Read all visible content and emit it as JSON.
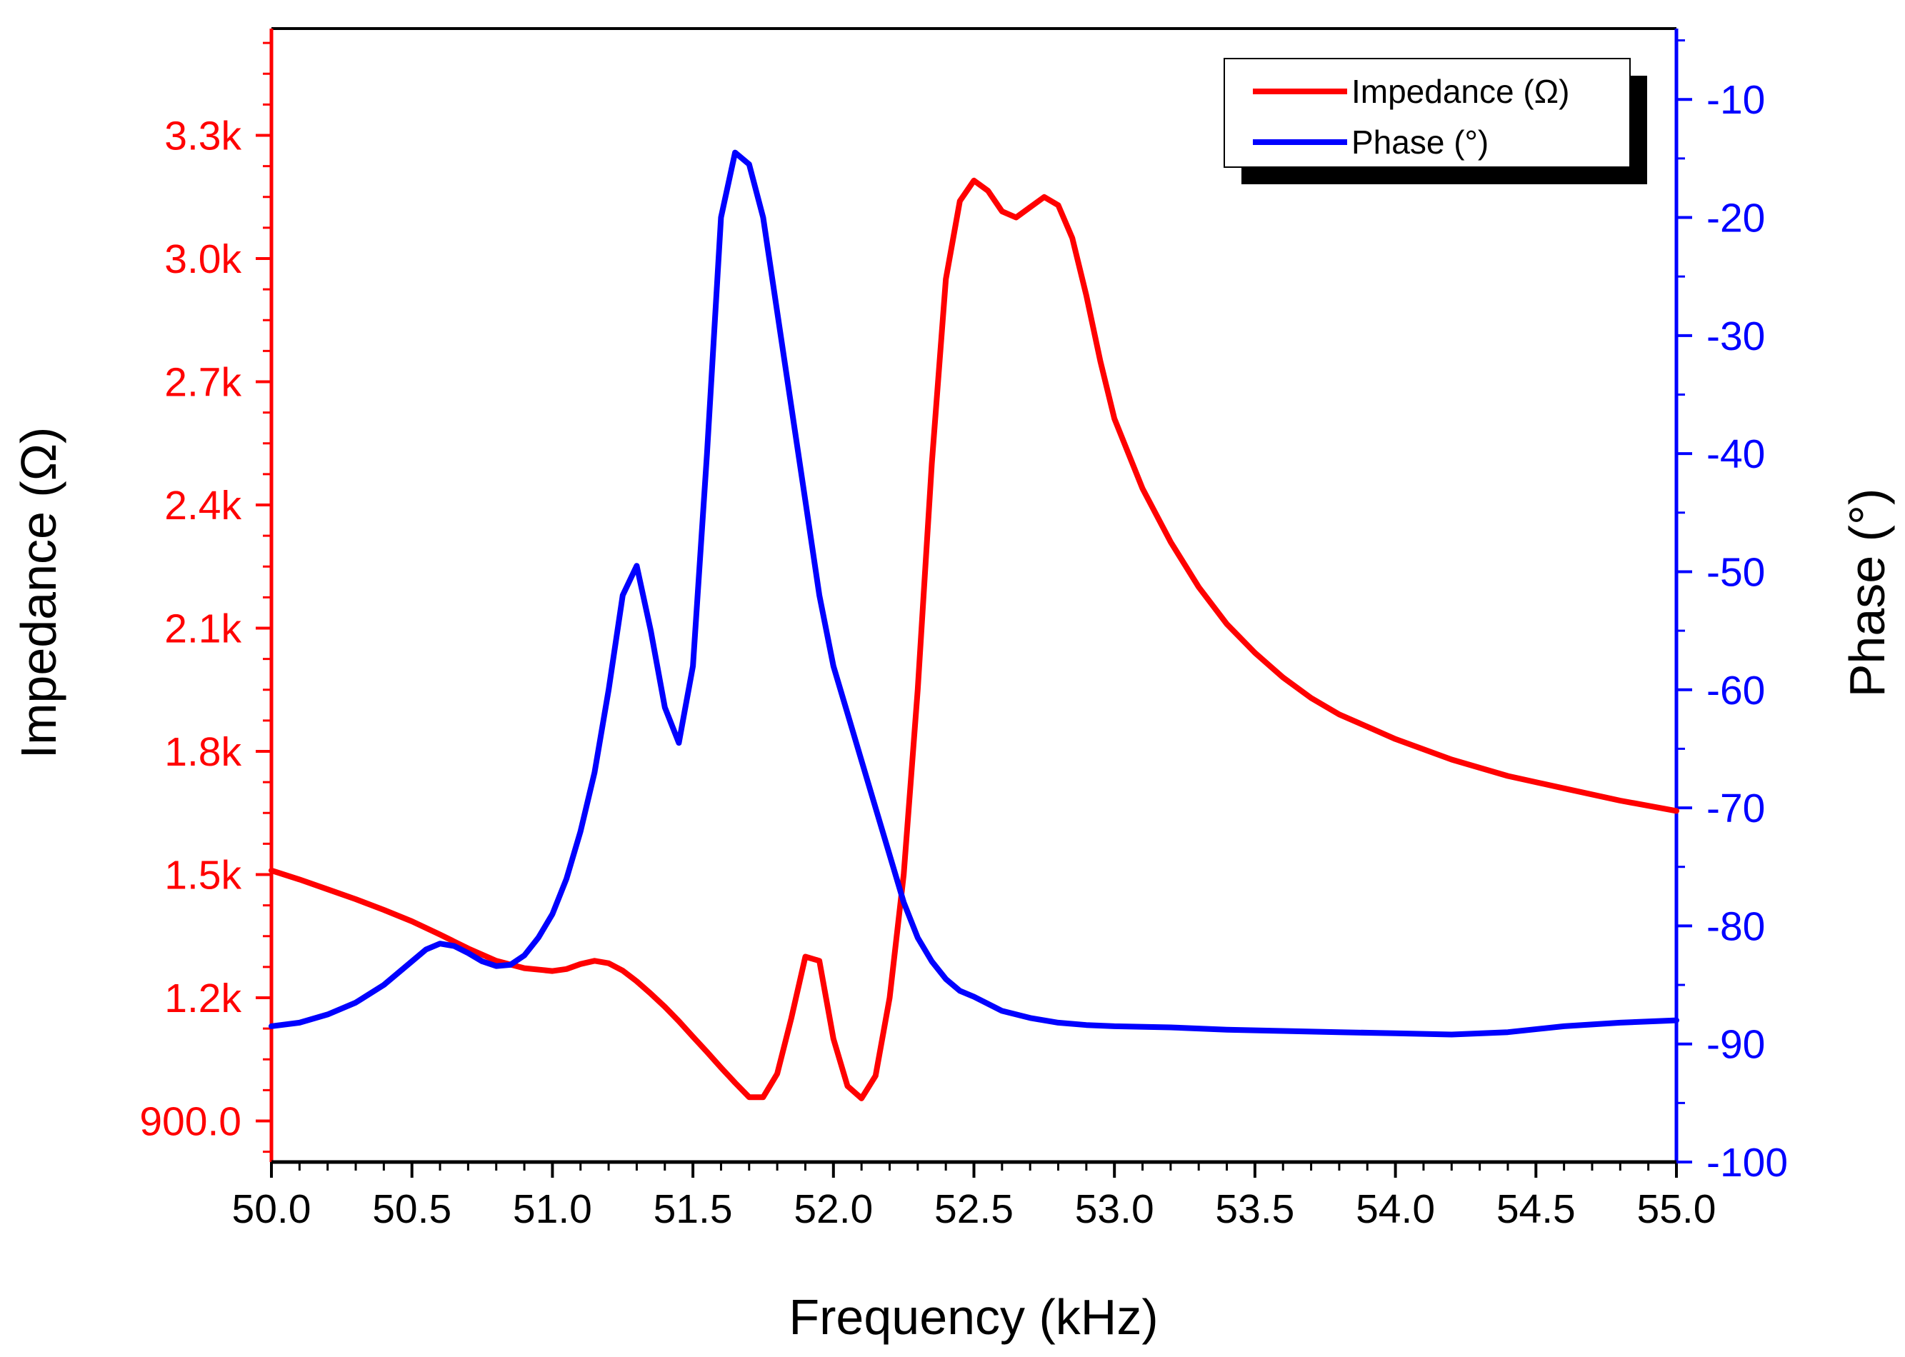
{
  "chart_data": {
    "type": "line",
    "title": "",
    "xlabel": "Frequency (kHz)",
    "ylabel_left": "Impedance (Ω)",
    "ylabel_right": "Phase (°)",
    "xlim": [
      50.0,
      55.0
    ],
    "ylim_left": [
      800,
      3560
    ],
    "ylim_right": [
      -100,
      -4
    ],
    "x_ticks": [
      "50.0",
      "50.5",
      "51.0",
      "51.5",
      "52.0",
      "52.5",
      "53.0",
      "53.5",
      "54.0",
      "54.5",
      "55.0"
    ],
    "y_left_ticks": [
      {
        "value": 900,
        "label": "900.0"
      },
      {
        "value": 1200,
        "label": "1.2k"
      },
      {
        "value": 1500,
        "label": "1.5k"
      },
      {
        "value": 1800,
        "label": "1.8k"
      },
      {
        "value": 2100,
        "label": "2.1k"
      },
      {
        "value": 2400,
        "label": "2.4k"
      },
      {
        "value": 2700,
        "label": "2.7k"
      },
      {
        "value": 3000,
        "label": "3.0k"
      },
      {
        "value": 3300,
        "label": "3.3k"
      }
    ],
    "y_right_ticks": [
      {
        "value": -100,
        "label": "-100"
      },
      {
        "value": -90,
        "label": "-90"
      },
      {
        "value": -80,
        "label": "-80"
      },
      {
        "value": -70,
        "label": "-70"
      },
      {
        "value": -60,
        "label": "-60"
      },
      {
        "value": -50,
        "label": "-50"
      },
      {
        "value": -40,
        "label": "-40"
      },
      {
        "value": -30,
        "label": "-30"
      },
      {
        "value": -20,
        "label": "-20"
      },
      {
        "value": -10,
        "label": "-10"
      }
    ],
    "legend_position": "top-right",
    "grid": false,
    "series": [
      {
        "name": "Impedance (Ω)",
        "axis": "left",
        "color": "#ff0000",
        "x": [
          50.0,
          50.1,
          50.2,
          50.3,
          50.4,
          50.5,
          50.6,
          50.7,
          50.8,
          50.9,
          51.0,
          51.05,
          51.1,
          51.15,
          51.2,
          51.25,
          51.3,
          51.35,
          51.4,
          51.45,
          51.5,
          51.55,
          51.6,
          51.65,
          51.7,
          51.75,
          51.8,
          51.85,
          51.9,
          51.95,
          52.0,
          52.05,
          52.1,
          52.15,
          52.2,
          52.25,
          52.3,
          52.35,
          52.4,
          52.45,
          52.5,
          52.55,
          52.6,
          52.65,
          52.7,
          52.75,
          52.8,
          52.85,
          52.9,
          52.95,
          53.0,
          53.1,
          53.2,
          53.3,
          53.4,
          53.5,
          53.6,
          53.7,
          53.8,
          53.9,
          54.0,
          54.2,
          54.4,
          54.6,
          54.8,
          55.0
        ],
        "values": [
          1510,
          1488,
          1464,
          1440,
          1414,
          1386,
          1354,
          1320,
          1290,
          1272,
          1265,
          1270,
          1282,
          1290,
          1284,
          1266,
          1240,
          1210,
          1178,
          1143,
          1105,
          1068,
          1030,
          993,
          958,
          958,
          1015,
          1150,
          1300,
          1290,
          1100,
          985,
          955,
          1010,
          1200,
          1500,
          1950,
          2500,
          2950,
          3140,
          3190,
          3165,
          3115,
          3100,
          3125,
          3150,
          3130,
          3050,
          2910,
          2750,
          2610,
          2440,
          2310,
          2200,
          2110,
          2040,
          1980,
          1930,
          1890,
          1860,
          1830,
          1780,
          1740,
          1710,
          1680,
          1655
        ]
      },
      {
        "name": "Phase (°)",
        "axis": "right",
        "color": "#0000ff",
        "x": [
          50.0,
          50.1,
          50.2,
          50.3,
          50.4,
          50.5,
          50.55,
          50.6,
          50.65,
          50.7,
          50.75,
          50.8,
          50.85,
          50.9,
          50.95,
          51.0,
          51.05,
          51.1,
          51.15,
          51.2,
          51.25,
          51.3,
          51.35,
          51.4,
          51.45,
          51.5,
          51.55,
          51.6,
          51.65,
          51.7,
          51.75,
          51.8,
          51.85,
          51.9,
          51.95,
          52.0,
          52.05,
          52.1,
          52.15,
          52.2,
          52.25,
          52.3,
          52.35,
          52.4,
          52.45,
          52.5,
          52.6,
          52.7,
          52.8,
          52.9,
          53.0,
          53.2,
          53.4,
          53.6,
          53.8,
          54.0,
          54.2,
          54.4,
          54.6,
          54.8,
          55.0
        ],
        "values": [
          -88.5,
          -88.2,
          -87.5,
          -86.5,
          -85,
          -83,
          -82,
          -81.5,
          -81.7,
          -82.3,
          -83,
          -83.4,
          -83.3,
          -82.5,
          -81,
          -79,
          -76,
          -72,
          -67,
          -60,
          -52,
          -49.5,
          -55,
          -61.5,
          -64.5,
          -58,
          -40,
          -20,
          -14.5,
          -15.5,
          -20,
          -28,
          -36,
          -44,
          -52,
          -58,
          -62,
          -66,
          -70,
          -74,
          -78,
          -81,
          -83,
          -84.5,
          -85.5,
          -86,
          -87.2,
          -87.8,
          -88.2,
          -88.4,
          -88.5,
          -88.6,
          -88.8,
          -88.9,
          -89,
          -89.1,
          -89.2,
          -89,
          -88.5,
          -88.2,
          -88.0
        ]
      }
    ]
  }
}
